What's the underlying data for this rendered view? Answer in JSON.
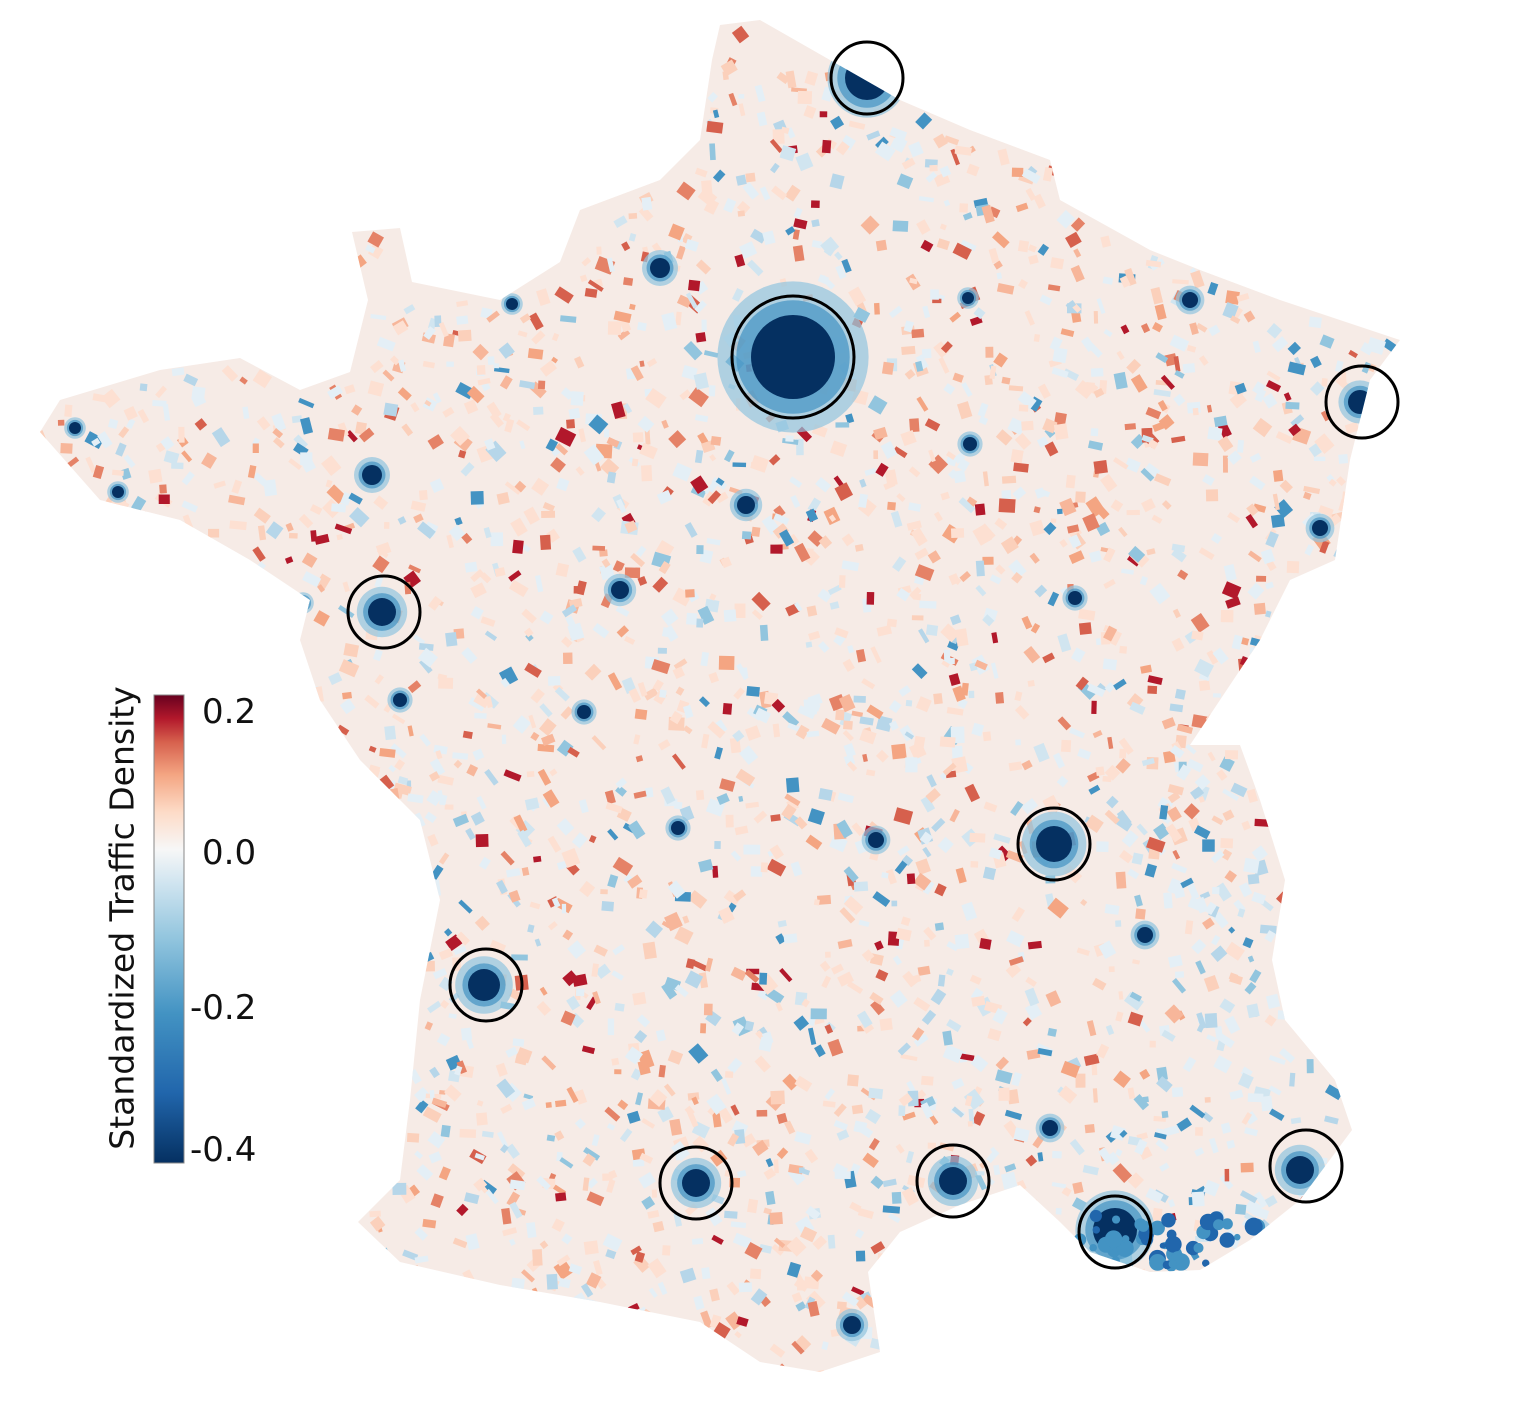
{
  "colorbar": {
    "label": "Standardized Traffic Density",
    "ticks": [
      "0.2",
      "0.0",
      "-0.2",
      "-0.4"
    ],
    "tick_values": [
      0.2,
      0.0,
      -0.2,
      -0.4
    ],
    "range": [
      -0.42,
      0.225
    ],
    "colormap": "RdBu_r",
    "colors": {
      "high": "#67001f",
      "mid": "#f7f7f7",
      "low": "#053061"
    }
  },
  "map": {
    "region": "France",
    "highlight_circle_count": 10,
    "circle_color": "#000000"
  }
}
